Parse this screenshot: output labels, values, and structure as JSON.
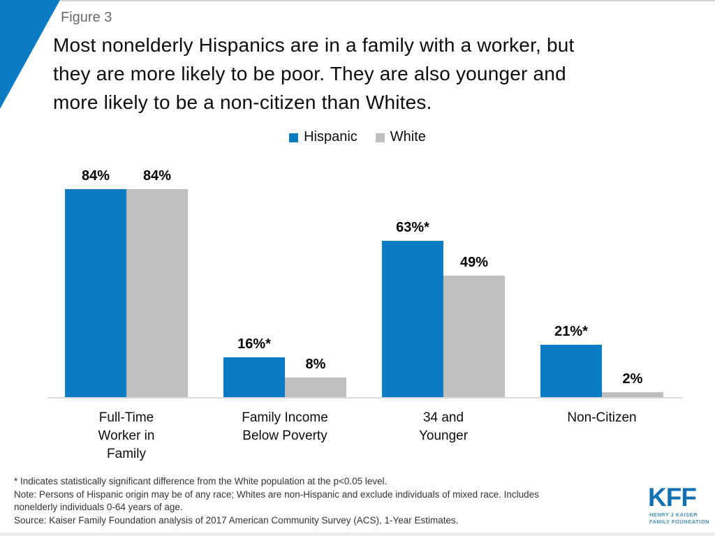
{
  "figure_label": "Figure 3",
  "title": {
    "lines": [
      "Most nonelderly Hispanics are in a family with a worker, but",
      "they are more likely to be poor. They are also younger and",
      "more likely to be a non-citizen than Whites."
    ]
  },
  "legend": [
    {
      "label": "Hispanic",
      "color": "#0b7cc4"
    },
    {
      "label": "White",
      "color": "#bfbfbf"
    }
  ],
  "chart_data": {
    "type": "bar",
    "title": "Most nonelderly Hispanics are in a family with a worker, but they are more likely to be poor. They are also younger and more likely to be a non-citizen than Whites.",
    "categories": [
      "Full-Time Worker in Family",
      "Family Income Below Poverty",
      "34 and Younger",
      "Non-Citizen"
    ],
    "category_lines": [
      [
        "Full-Time",
        "Worker in",
        "Family"
      ],
      [
        "Family Income",
        "Below Poverty"
      ],
      [
        "34 and",
        "Younger"
      ],
      [
        "Non-Citizen"
      ]
    ],
    "series": [
      {
        "name": "Hispanic",
        "color": "#0b7cc4",
        "values": [
          84,
          16,
          63,
          21
        ],
        "labels": [
          "84%",
          "16%*",
          "63%*",
          "21%*"
        ]
      },
      {
        "name": "White",
        "color": "#bfbfbf",
        "values": [
          84,
          8,
          49,
          2
        ],
        "labels": [
          "84%",
          "8%",
          "49%",
          "2%"
        ]
      }
    ],
    "value_unit": "%",
    "ylim": [
      0,
      100
    ],
    "grid": false,
    "legend_position": "top",
    "xlabel": "",
    "ylabel": ""
  },
  "footnotes": {
    "lines": [
      "* Indicates statistically significant difference from the White population at the p<0.05 level.",
      "Note: Persons of Hispanic origin may be of any race; Whites are non-Hispanic and exclude individuals of mixed race. Includes",
      "nonelderly individuals 0-64 years of age.",
      "Source: Kaiser Family Foundation analysis of 2017 American Community Survey (ACS), 1-Year Estimates."
    ]
  },
  "logo": {
    "text": "KFF",
    "subtext_lines": [
      "HENRY J KAISER",
      "FAMILY FOUNDATION"
    ],
    "color": "#1470b4"
  },
  "colors": {
    "accent_blue": "#0b7cc4",
    "bar_gray": "#bfbfbf",
    "axis_line": "#dadada",
    "figure_label_gray": "#6b6b6b"
  }
}
